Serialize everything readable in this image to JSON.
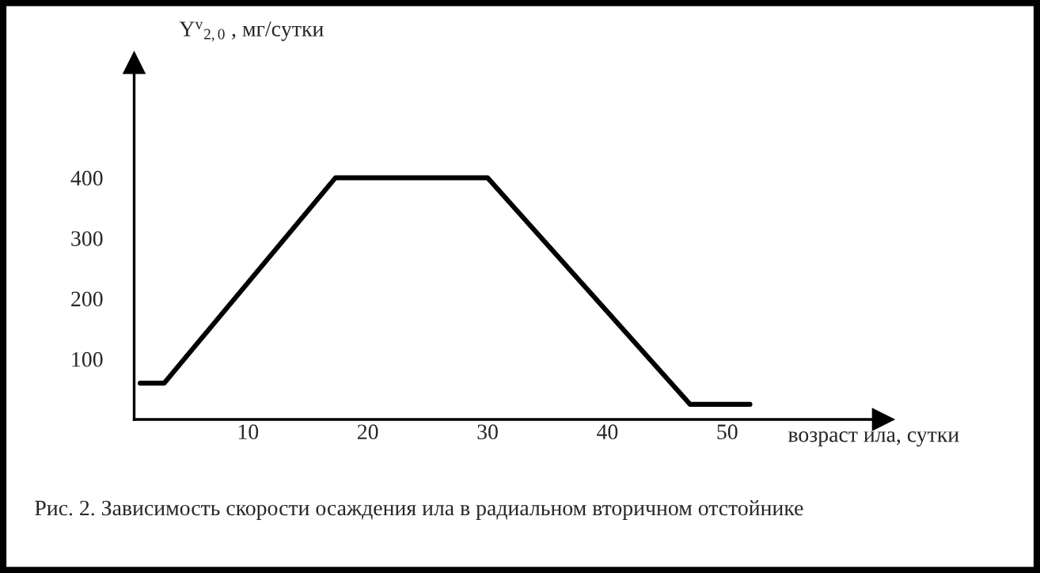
{
  "chart_data": {
    "type": "line",
    "x": [
      1,
      3,
      17.3,
      30,
      46.9,
      51.9
    ],
    "series": [
      {
        "color": "#000000",
        "values": [
          60,
          60,
          400,
          400,
          25,
          25
        ]
      }
    ],
    "xlabel": "возраст ила, сутки",
    "ylabel": "Y$^{v}$$_{2,0}$ , мг/сутки",
    "xlim": [
      0.5,
      63
    ],
    "ylim": [
      0,
      590
    ],
    "xticks": [
      10,
      20,
      30,
      40,
      50
    ],
    "yticks": [
      100,
      200,
      300,
      400
    ],
    "grid": false,
    "marker": "none",
    "line_style": "solid",
    "annotations": [
      "Рис. 2. Зависимость скорости осаждения ила в радиальном вторичном отстойнике"
    ]
  }
}
